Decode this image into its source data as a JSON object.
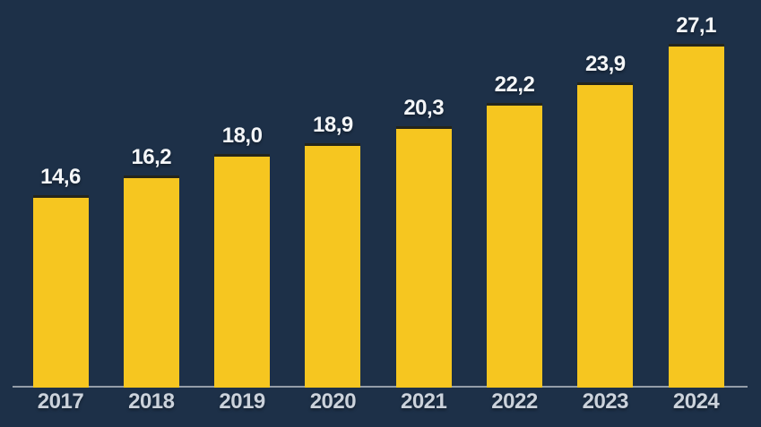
{
  "chart_data": {
    "type": "bar",
    "title": "",
    "xlabel": "",
    "ylabel": "",
    "legend": false,
    "grid": false,
    "categories": [
      "2017",
      "2018",
      "2019",
      "2020",
      "2021",
      "2022",
      "2023",
      "2024"
    ],
    "values": [
      14.6,
      16.2,
      18.0,
      18.9,
      20.3,
      22.2,
      23.9,
      27.1
    ],
    "value_labels": [
      "14,6",
      "16,2",
      "18,0",
      "18,9",
      "20,3",
      "22,2",
      "23,9",
      "27,1"
    ],
    "decimal_separator": ",",
    "colors": {
      "background": "#1d3048",
      "bar": "#f6c620",
      "bar_top_edge": "#24251b",
      "axis_line": "#a9b0ba",
      "value_label": "#f4f6f8",
      "category_label": "#cbd2db"
    }
  }
}
